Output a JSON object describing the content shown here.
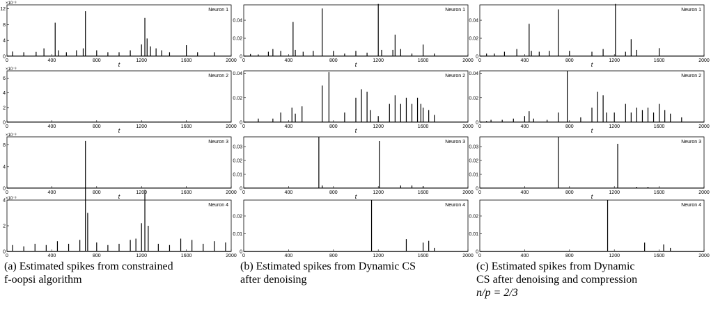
{
  "x_axis": {
    "label": "t",
    "ticks": [
      "0",
      "400",
      "800",
      "1200",
      "1600",
      "2000"
    ]
  },
  "panels": [
    {
      "title": "Neuron 1",
      "columns": [
        {
          "exponent": "×10⁻³",
          "yticks": [
            "0",
            "4",
            "8",
            "12"
          ],
          "ylim": [
            0,
            13
          ]
        },
        {
          "exponent": "",
          "yticks": [
            "0",
            "0.02",
            "0.04"
          ],
          "ylim": [
            0,
            0.057
          ]
        },
        {
          "exponent": "",
          "yticks": [
            "0",
            "0.02",
            "0.04"
          ],
          "ylim": [
            0,
            0.057
          ]
        }
      ]
    },
    {
      "title": "Neuron 2",
      "columns": [
        {
          "exponent": "×10⁻³",
          "yticks": [
            "0",
            "2",
            "4",
            "6"
          ],
          "ylim": [
            0,
            7
          ]
        },
        {
          "exponent": "",
          "yticks": [
            "0",
            "0.02",
            "0.04"
          ],
          "ylim": [
            0,
            0.042
          ]
        },
        {
          "exponent": "",
          "yticks": [
            "0",
            "0.02",
            "0.04"
          ],
          "ylim": [
            0,
            0.042
          ]
        }
      ]
    },
    {
      "title": "Neuron 3",
      "columns": [
        {
          "exponent": "×10⁻³",
          "yticks": [
            "0",
            "4",
            "8"
          ],
          "ylim": [
            0,
            9.5
          ]
        },
        {
          "exponent": "",
          "yticks": [
            "0",
            "0.01",
            "0.02",
            "0.03"
          ],
          "ylim": [
            0,
            0.037
          ]
        },
        {
          "exponent": "",
          "yticks": [
            "0",
            "0.01",
            "0.02",
            "0.03"
          ],
          "ylim": [
            0,
            0.037
          ]
        }
      ]
    },
    {
      "title": "Neuron 4",
      "columns": [
        {
          "exponent": "×10⁻³",
          "yticks": [
            "0",
            "2",
            "4"
          ],
          "ylim": [
            0,
            4
          ]
        },
        {
          "exponent": "",
          "yticks": [
            "0",
            "0.01",
            "0.02"
          ],
          "ylim": [
            0,
            0.029
          ]
        },
        {
          "exponent": "",
          "yticks": [
            "0",
            "0.01",
            "0.02"
          ],
          "ylim": [
            0,
            0.029
          ]
        }
      ]
    }
  ],
  "captions": [
    {
      "line1": "(a) Estimated spikes from constrained",
      "line2": "f-oopsi algorithm",
      "line3": ""
    },
    {
      "line1": "(b) Estimated spikes from Dynamic CS",
      "line2": "after denoising",
      "line3": ""
    },
    {
      "line1": "(c) Estimated spikes from Dynamic",
      "line2": "CS after denoising and compression",
      "line3": "n/p = 2/3"
    }
  ],
  "chart_data": [
    {
      "type": "bar",
      "xlabel": "t",
      "xlim": [
        0,
        2000
      ],
      "series": [
        {
          "values": [
            [
              50,
              1.2
            ],
            [
              150,
              1
            ],
            [
              260,
              1.1
            ],
            [
              330,
              2
            ],
            [
              430,
              8.5
            ],
            [
              460,
              1.5
            ],
            [
              530,
              1
            ],
            [
              620,
              1.5
            ],
            [
              680,
              2
            ],
            [
              700,
              11.4
            ],
            [
              800,
              1.5
            ],
            [
              900,
              1
            ],
            [
              1000,
              1
            ],
            [
              1100,
              1.5
            ],
            [
              1200,
              3
            ],
            [
              1230,
              9.7
            ],
            [
              1250,
              4.5
            ],
            [
              1280,
              2.5
            ],
            [
              1330,
              2
            ],
            [
              1380,
              1.5
            ],
            [
              1450,
              1
            ],
            [
              1600,
              2.8
            ],
            [
              1700,
              1
            ],
            [
              1850,
              1
            ]
          ]
        },
        {
          "values": [
            [
              60,
              0.0005
            ],
            [
              100,
              0.002
            ],
            [
              200,
              0.002
            ],
            [
              300,
              0.005
            ],
            [
              440,
              0.004
            ],
            [
              460,
              0.009
            ],
            [
              480,
              0.004
            ],
            [
              520,
              0.008
            ],
            [
              560,
              0.01
            ],
            [
              600,
              0.005
            ],
            [
              650,
              0.008
            ],
            [
              700,
              0.015
            ],
            [
              760,
              0.042
            ],
            [
              800,
              0.01
            ],
            [
              850,
              0.008
            ],
            [
              900,
              0.006
            ],
            [
              950,
              0.008
            ],
            [
              1000,
              0.012
            ],
            [
              1050,
              0.025
            ],
            [
              1100,
              0.022
            ],
            [
              1130,
              0.012
            ],
            [
              1200,
              0.008
            ],
            [
              1300,
              0.018
            ],
            [
              1350,
              0.022
            ],
            [
              1380,
              0.015
            ],
            [
              1400,
              0.025
            ],
            [
              1450,
              0.012
            ],
            [
              1480,
              0.018
            ],
            [
              1500,
              0.015
            ],
            [
              1550,
              0.02
            ],
            [
              1580,
              0.012
            ],
            [
              1600,
              0.009
            ],
            [
              1650,
              0.012
            ],
            [
              1700,
              0.005
            ]
          ]
        },
        {
          "values": [
            [
              60,
              0.001
            ],
            [
              100,
              0.002
            ],
            [
              200,
              0.002
            ],
            [
              300,
              0.003
            ],
            [
              350,
              0.003
            ],
            [
              400,
              0.005
            ],
            [
              440,
              0.01
            ],
            [
              480,
              0.003
            ],
            [
              520,
              0.003
            ],
            [
              600,
              0.003
            ],
            [
              700,
              0.008
            ],
            [
              780,
              0.042
            ],
            [
              800,
              0.003
            ],
            [
              900,
              0.005
            ],
            [
              1000,
              0.012
            ],
            [
              1050,
              0.025
            ],
            [
              1100,
              0.022
            ],
            [
              1130,
              0.01
            ],
            [
              1200,
              0.008
            ],
            [
              1300,
              0.015
            ],
            [
              1350,
              0.008
            ],
            [
              1400,
              0.012
            ],
            [
              1450,
              0.009
            ],
            [
              1500,
              0.012
            ],
            [
              1550,
              0.008
            ],
            [
              1600,
              0.015
            ],
            [
              1650,
              0.01
            ],
            [
              1700,
              0.008
            ],
            [
              1800,
              0.004
            ]
          ]
        },
        {
          "values": [
            [
              50,
              0.5
            ],
            [
              150,
              0.4
            ],
            [
              250,
              0.6
            ],
            [
              350,
              0.5
            ],
            [
              450,
              0.8
            ],
            [
              550,
              0.6
            ],
            [
              650,
              0.9
            ],
            [
              700,
              8.6
            ],
            [
              720,
              3
            ],
            [
              800,
              0.7
            ],
            [
              900,
              0.5
            ],
            [
              1000,
              0.6
            ],
            [
              1100,
              0.9
            ],
            [
              1150,
              1
            ],
            [
              1200,
              2.2
            ],
            [
              1230,
              4.8
            ],
            [
              1260,
              2
            ],
            [
              1350,
              0.6
            ],
            [
              1450,
              0.5
            ],
            [
              1550,
              1
            ],
            [
              1650,
              0.9
            ],
            [
              1750,
              0.6
            ],
            [
              1850,
              0.8
            ],
            [
              1950,
              0.7
            ]
          ]
        }
      ]
    },
    {
      "type": "bar",
      "xlabel": "t",
      "xlim": [
        0,
        2000
      ],
      "series": [
        {
          "values": [
            [
              60,
              0.0025
            ],
            [
              130,
              0.002
            ],
            [
              220,
              0.005
            ],
            [
              260,
              0.008
            ],
            [
              330,
              0.006
            ],
            [
              440,
              0.038
            ],
            [
              460,
              0.007
            ],
            [
              530,
              0.005
            ],
            [
              620,
              0.006
            ],
            [
              700,
              0.053
            ],
            [
              800,
              0.006
            ],
            [
              900,
              0.003
            ],
            [
              1000,
              0.006
            ],
            [
              1100,
              0.004
            ],
            [
              1200,
              0.058
            ],
            [
              1230,
              0.007
            ],
            [
              1330,
              0.007
            ],
            [
              1350,
              0.024
            ],
            [
              1400,
              0.008
            ],
            [
              1500,
              0.003
            ],
            [
              1600,
              0.013
            ],
            [
              1700,
              0.003
            ]
          ]
        },
        {
          "values": [
            [
              130,
              0.003
            ],
            [
              260,
              0.003
            ],
            [
              330,
              0.008
            ],
            [
              430,
              0.012
            ],
            [
              460,
              0.007
            ],
            [
              520,
              0.013
            ],
            [
              700,
              0.03
            ],
            [
              760,
              0.041
            ],
            [
              900,
              0.008
            ],
            [
              1000,
              0.02
            ],
            [
              1050,
              0.027
            ],
            [
              1100,
              0.025
            ],
            [
              1130,
              0.01
            ],
            [
              1200,
              0.005
            ],
            [
              1300,
              0.015
            ],
            [
              1350,
              0.022
            ],
            [
              1400,
              0.015
            ],
            [
              1450,
              0.02
            ],
            [
              1500,
              0.015
            ],
            [
              1550,
              0.02
            ],
            [
              1580,
              0.015
            ],
            [
              1600,
              0.012
            ],
            [
              1650,
              0.01
            ],
            [
              1700,
              0.006
            ]
          ]
        },
        {
          "values": [
            [
              670,
              0.037
            ],
            [
              1210,
              0.034
            ],
            [
              700,
              0.002
            ],
            [
              1400,
              0.002
            ],
            [
              1500,
              0.002
            ],
            [
              1600,
              0.0015
            ]
          ]
        },
        {
          "values": [
            [
              1140,
              0.029
            ],
            [
              1450,
              0.007
            ],
            [
              1600,
              0.005
            ],
            [
              1650,
              0.006
            ],
            [
              1700,
              0.002
            ]
          ]
        }
      ]
    },
    {
      "type": "bar",
      "xlabel": "t",
      "xlim": [
        0,
        2000
      ],
      "series": [
        {
          "values": [
            [
              60,
              0.003
            ],
            [
              130,
              0.003
            ],
            [
              220,
              0.005
            ],
            [
              330,
              0.008
            ],
            [
              440,
              0.036
            ],
            [
              460,
              0.006
            ],
            [
              530,
              0.005
            ],
            [
              620,
              0.006
            ],
            [
              700,
              0.052
            ],
            [
              800,
              0.006
            ],
            [
              1000,
              0.005
            ],
            [
              1100,
              0.008
            ],
            [
              1210,
              0.058
            ],
            [
              1300,
              0.005
            ],
            [
              1350,
              0.019
            ],
            [
              1400,
              0.007
            ],
            [
              1600,
              0.009
            ]
          ]
        },
        {
          "values": [
            [
              60,
              0.001
            ],
            [
              100,
              0.002
            ],
            [
              200,
              0.002
            ],
            [
              300,
              0.003
            ],
            [
              400,
              0.005
            ],
            [
              440,
              0.009
            ],
            [
              480,
              0.003
            ],
            [
              600,
              0.002
            ],
            [
              700,
              0.008
            ],
            [
              780,
              0.042
            ],
            [
              900,
              0.004
            ],
            [
              1000,
              0.012
            ],
            [
              1050,
              0.025
            ],
            [
              1100,
              0.022
            ],
            [
              1130,
              0.008
            ],
            [
              1200,
              0.008
            ],
            [
              1300,
              0.015
            ],
            [
              1350,
              0.008
            ],
            [
              1400,
              0.012
            ],
            [
              1450,
              0.01
            ],
            [
              1500,
              0.012
            ],
            [
              1550,
              0.008
            ],
            [
              1600,
              0.015
            ],
            [
              1650,
              0.01
            ],
            [
              1700,
              0.007
            ],
            [
              1800,
              0.004
            ]
          ]
        },
        {
          "values": [
            [
              700,
              0.037
            ],
            [
              1230,
              0.032
            ],
            [
              1400,
              0.001
            ],
            [
              1500,
              0.001
            ]
          ]
        },
        {
          "values": [
            [
              1140,
              0.029
            ],
            [
              1470,
              0.005
            ],
            [
              1640,
              0.004
            ],
            [
              1700,
              0.002
            ]
          ]
        }
      ]
    }
  ]
}
